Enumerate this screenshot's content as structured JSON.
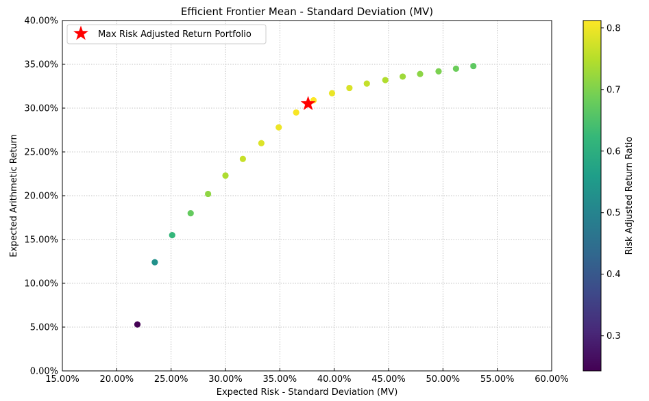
{
  "chart_data": {
    "type": "scatter",
    "title": "Efficient Frontier Mean - Standard Deviation (MV)",
    "xlabel": "Expected Risk - Standard Deviation (MV)",
    "ylabel": "Expected Arithmetic Return",
    "xlim": [
      0.15,
      0.6
    ],
    "ylim": [
      0.0,
      0.4
    ],
    "x_ticks": [
      0.15,
      0.2,
      0.25,
      0.3,
      0.35,
      0.4,
      0.45,
      0.5,
      0.55,
      0.6
    ],
    "x_tick_labels": [
      "15.00%",
      "20.00%",
      "25.00%",
      "30.00%",
      "35.00%",
      "40.00%",
      "45.00%",
      "50.00%",
      "55.00%",
      "60.00%"
    ],
    "y_ticks": [
      0.0,
      0.05,
      0.1,
      0.15,
      0.2,
      0.25,
      0.3,
      0.35,
      0.4
    ],
    "y_tick_labels": [
      "0.00%",
      "5.00%",
      "10.00%",
      "15.00%",
      "20.00%",
      "25.00%",
      "30.00%",
      "35.00%",
      "40.00%"
    ],
    "grid": true,
    "legend_position": "top-left",
    "colorbar": {
      "label": "Risk Adjusted Return Ratio",
      "range": [
        0.243,
        0.812
      ],
      "ticks": [
        0.3,
        0.4,
        0.5,
        0.6,
        0.7,
        0.8
      ],
      "tick_labels": [
        "0.3",
        "0.4",
        "0.5",
        "0.6",
        "0.7",
        "0.8"
      ],
      "colormap": "viridis",
      "stops": [
        "#440154",
        "#482878",
        "#3e4989",
        "#31688e",
        "#26828e",
        "#1f9e89",
        "#35b779",
        "#6ece58",
        "#b5de2b",
        "#fde725"
      ]
    },
    "points": [
      {
        "x": 0.219,
        "y": 0.053,
        "c": 0.243
      },
      {
        "x": 0.235,
        "y": 0.124,
        "c": 0.53
      },
      {
        "x": 0.251,
        "y": 0.155,
        "c": 0.62
      },
      {
        "x": 0.268,
        "y": 0.18,
        "c": 0.675
      },
      {
        "x": 0.284,
        "y": 0.202,
        "c": 0.715
      },
      {
        "x": 0.3,
        "y": 0.223,
        "c": 0.742
      },
      {
        "x": 0.316,
        "y": 0.242,
        "c": 0.765
      },
      {
        "x": 0.333,
        "y": 0.26,
        "c": 0.783
      },
      {
        "x": 0.349,
        "y": 0.278,
        "c": 0.798
      },
      {
        "x": 0.365,
        "y": 0.295,
        "c": 0.808
      },
      {
        "x": 0.381,
        "y": 0.309,
        "c": 0.812
      },
      {
        "x": 0.398,
        "y": 0.317,
        "c": 0.795
      },
      {
        "x": 0.414,
        "y": 0.323,
        "c": 0.78
      },
      {
        "x": 0.43,
        "y": 0.328,
        "c": 0.762
      },
      {
        "x": 0.447,
        "y": 0.332,
        "c": 0.745
      },
      {
        "x": 0.463,
        "y": 0.336,
        "c": 0.728
      },
      {
        "x": 0.479,
        "y": 0.339,
        "c": 0.712
      },
      {
        "x": 0.496,
        "y": 0.342,
        "c": 0.697
      },
      {
        "x": 0.512,
        "y": 0.345,
        "c": 0.682
      },
      {
        "x": 0.528,
        "y": 0.348,
        "c": 0.668
      }
    ],
    "highlight": {
      "name": "Max Risk Adjusted Return Portfolio",
      "x": 0.376,
      "y": 0.305,
      "color": "#ff0000"
    }
  }
}
